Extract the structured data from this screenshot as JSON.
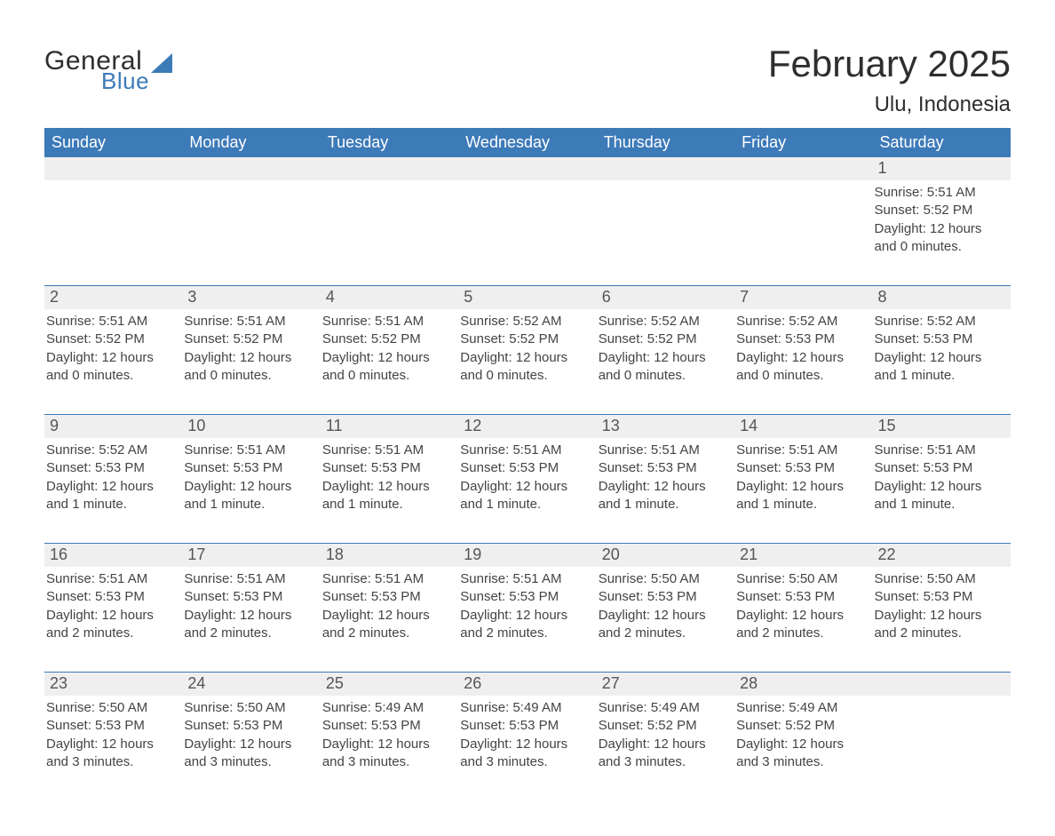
{
  "logo": {
    "text_general": "General",
    "text_blue": "Blue",
    "icon_color": "#3d7ab8"
  },
  "title": {
    "month_year": "February 2025",
    "location": "Ulu, Indonesia"
  },
  "colors": {
    "header_bg": "#3d7ab8",
    "header_text": "#ffffff",
    "row_bg": "#efefef",
    "divider": "#3d7ab8",
    "text": "#333333",
    "background": "#ffffff"
  },
  "typography": {
    "month_title_fontsize": 42,
    "location_fontsize": 24,
    "weekday_fontsize": 18,
    "daynum_fontsize": 18,
    "details_fontsize": 15,
    "font_family": "Arial"
  },
  "weekdays": [
    "Sunday",
    "Monday",
    "Tuesday",
    "Wednesday",
    "Thursday",
    "Friday",
    "Saturday"
  ],
  "labels": {
    "sunrise": "Sunrise:",
    "sunset": "Sunset:",
    "daylight": "Daylight:"
  },
  "weeks": [
    [
      null,
      null,
      null,
      null,
      null,
      null,
      {
        "day": "1",
        "sunrise": "5:51 AM",
        "sunset": "5:52 PM",
        "daylight": "12 hours and 0 minutes."
      }
    ],
    [
      {
        "day": "2",
        "sunrise": "5:51 AM",
        "sunset": "5:52 PM",
        "daylight": "12 hours and 0 minutes."
      },
      {
        "day": "3",
        "sunrise": "5:51 AM",
        "sunset": "5:52 PM",
        "daylight": "12 hours and 0 minutes."
      },
      {
        "day": "4",
        "sunrise": "5:51 AM",
        "sunset": "5:52 PM",
        "daylight": "12 hours and 0 minutes."
      },
      {
        "day": "5",
        "sunrise": "5:52 AM",
        "sunset": "5:52 PM",
        "daylight": "12 hours and 0 minutes."
      },
      {
        "day": "6",
        "sunrise": "5:52 AM",
        "sunset": "5:52 PM",
        "daylight": "12 hours and 0 minutes."
      },
      {
        "day": "7",
        "sunrise": "5:52 AM",
        "sunset": "5:53 PM",
        "daylight": "12 hours and 0 minutes."
      },
      {
        "day": "8",
        "sunrise": "5:52 AM",
        "sunset": "5:53 PM",
        "daylight": "12 hours and 1 minute."
      }
    ],
    [
      {
        "day": "9",
        "sunrise": "5:52 AM",
        "sunset": "5:53 PM",
        "daylight": "12 hours and 1 minute."
      },
      {
        "day": "10",
        "sunrise": "5:51 AM",
        "sunset": "5:53 PM",
        "daylight": "12 hours and 1 minute."
      },
      {
        "day": "11",
        "sunrise": "5:51 AM",
        "sunset": "5:53 PM",
        "daylight": "12 hours and 1 minute."
      },
      {
        "day": "12",
        "sunrise": "5:51 AM",
        "sunset": "5:53 PM",
        "daylight": "12 hours and 1 minute."
      },
      {
        "day": "13",
        "sunrise": "5:51 AM",
        "sunset": "5:53 PM",
        "daylight": "12 hours and 1 minute."
      },
      {
        "day": "14",
        "sunrise": "5:51 AM",
        "sunset": "5:53 PM",
        "daylight": "12 hours and 1 minute."
      },
      {
        "day": "15",
        "sunrise": "5:51 AM",
        "sunset": "5:53 PM",
        "daylight": "12 hours and 1 minute."
      }
    ],
    [
      {
        "day": "16",
        "sunrise": "5:51 AM",
        "sunset": "5:53 PM",
        "daylight": "12 hours and 2 minutes."
      },
      {
        "day": "17",
        "sunrise": "5:51 AM",
        "sunset": "5:53 PM",
        "daylight": "12 hours and 2 minutes."
      },
      {
        "day": "18",
        "sunrise": "5:51 AM",
        "sunset": "5:53 PM",
        "daylight": "12 hours and 2 minutes."
      },
      {
        "day": "19",
        "sunrise": "5:51 AM",
        "sunset": "5:53 PM",
        "daylight": "12 hours and 2 minutes."
      },
      {
        "day": "20",
        "sunrise": "5:50 AM",
        "sunset": "5:53 PM",
        "daylight": "12 hours and 2 minutes."
      },
      {
        "day": "21",
        "sunrise": "5:50 AM",
        "sunset": "5:53 PM",
        "daylight": "12 hours and 2 minutes."
      },
      {
        "day": "22",
        "sunrise": "5:50 AM",
        "sunset": "5:53 PM",
        "daylight": "12 hours and 2 minutes."
      }
    ],
    [
      {
        "day": "23",
        "sunrise": "5:50 AM",
        "sunset": "5:53 PM",
        "daylight": "12 hours and 3 minutes."
      },
      {
        "day": "24",
        "sunrise": "5:50 AM",
        "sunset": "5:53 PM",
        "daylight": "12 hours and 3 minutes."
      },
      {
        "day": "25",
        "sunrise": "5:49 AM",
        "sunset": "5:53 PM",
        "daylight": "12 hours and 3 minutes."
      },
      {
        "day": "26",
        "sunrise": "5:49 AM",
        "sunset": "5:53 PM",
        "daylight": "12 hours and 3 minutes."
      },
      {
        "day": "27",
        "sunrise": "5:49 AM",
        "sunset": "5:52 PM",
        "daylight": "12 hours and 3 minutes."
      },
      {
        "day": "28",
        "sunrise": "5:49 AM",
        "sunset": "5:52 PM",
        "daylight": "12 hours and 3 minutes."
      },
      null
    ]
  ]
}
